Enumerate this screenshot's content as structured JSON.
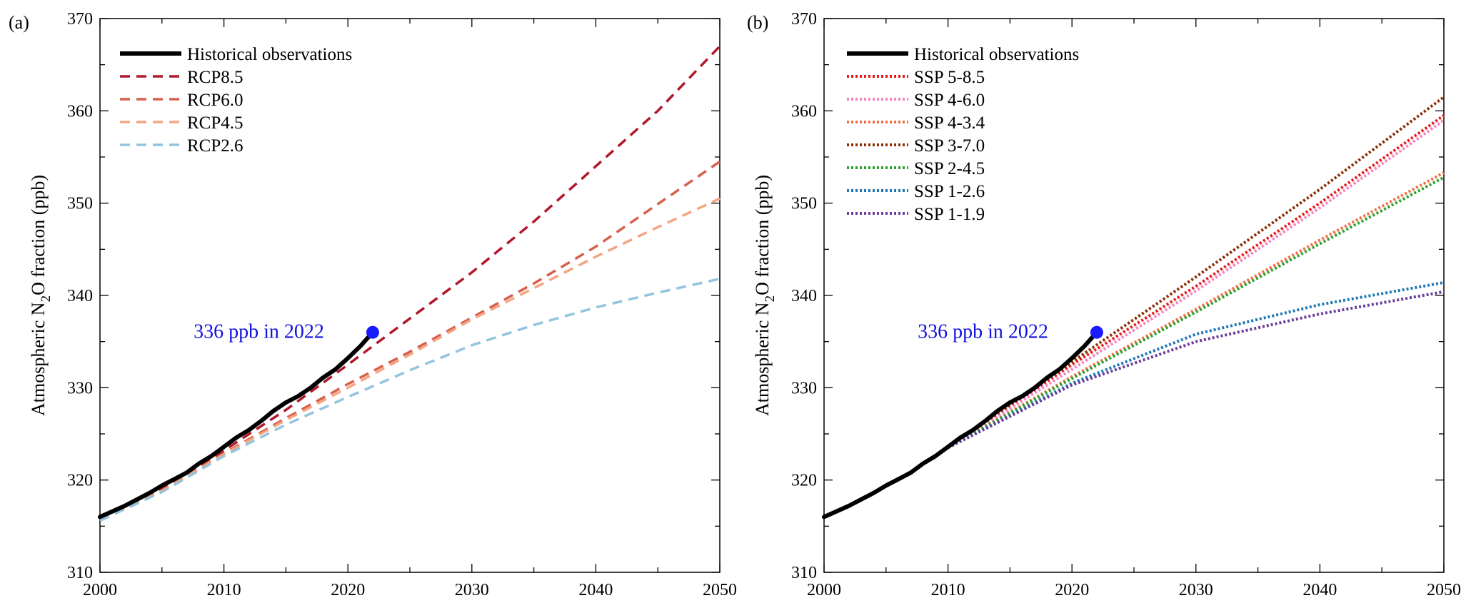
{
  "chart_data": [
    {
      "type": "line",
      "panel_label": "(a)",
      "xlim": [
        2000,
        2050
      ],
      "ylim": [
        310,
        370
      ],
      "xticks": [
        2000,
        2010,
        2020,
        2030,
        2040,
        2050
      ],
      "yticks": [
        310,
        320,
        330,
        340,
        350,
        360,
        370
      ],
      "ylabel": "Atmospheric N2O fraction (ppb)",
      "ylabel_parts": [
        "Atmospheric N",
        "2",
        "O fraction (ppb)"
      ],
      "xlabel": "",
      "grid": false,
      "legend_position": "top-left",
      "annotation": {
        "text": "336 ppb in 2022",
        "x": 2022,
        "y": 336,
        "color": "#1a1aff"
      },
      "series": [
        {
          "name": "Historical observations",
          "style": "solid",
          "color": "#000000",
          "x": [
            2000,
            2001,
            2002,
            2003,
            2004,
            2005,
            2006,
            2007,
            2008,
            2009,
            2010,
            2011,
            2012,
            2013,
            2014,
            2015,
            2016,
            2017,
            2018,
            2019,
            2020,
            2021,
            2022
          ],
          "y": [
            316.0,
            316.6,
            317.2,
            317.9,
            318.6,
            319.4,
            320.1,
            320.8,
            321.8,
            322.6,
            323.6,
            324.6,
            325.4,
            326.4,
            327.5,
            328.4,
            329.1,
            330.0,
            331.1,
            332.0,
            333.2,
            334.5,
            336.0
          ]
        },
        {
          "name": "RCP8.5",
          "style": "dash",
          "color": "#b2182b",
          "x": [
            2000,
            2005,
            2010,
            2015,
            2020,
            2025,
            2030,
            2035,
            2040,
            2045,
            2050
          ],
          "y": [
            315.8,
            319.0,
            323.2,
            327.6,
            332.5,
            337.5,
            342.5,
            348.0,
            354.0,
            360.0,
            367.0
          ]
        },
        {
          "name": "RCP6.0",
          "style": "dash",
          "color": "#d6604d",
          "x": [
            2000,
            2005,
            2010,
            2015,
            2020,
            2025,
            2030,
            2035,
            2040,
            2045,
            2050
          ],
          "y": [
            315.8,
            318.9,
            322.9,
            326.7,
            330.4,
            333.9,
            337.6,
            341.3,
            345.3,
            349.9,
            354.5
          ]
        },
        {
          "name": "RCP4.5",
          "style": "dash",
          "color": "#f4a582",
          "x": [
            2000,
            2005,
            2010,
            2015,
            2020,
            2025,
            2030,
            2035,
            2040,
            2045,
            2050
          ],
          "y": [
            315.8,
            318.8,
            322.8,
            326.5,
            330.0,
            333.6,
            337.4,
            340.8,
            344.2,
            347.4,
            350.5
          ]
        },
        {
          "name": "RCP2.6",
          "style": "dash",
          "color": "#92c5de",
          "x": [
            2000,
            2005,
            2010,
            2015,
            2020,
            2025,
            2030,
            2035,
            2040,
            2045,
            2050
          ],
          "y": [
            315.6,
            318.7,
            322.6,
            326.0,
            329.0,
            331.9,
            334.6,
            336.8,
            338.7,
            340.3,
            341.8
          ]
        }
      ]
    },
    {
      "type": "line",
      "panel_label": "(b)",
      "xlim": [
        2000,
        2050
      ],
      "ylim": [
        310,
        370
      ],
      "xticks": [
        2000,
        2010,
        2020,
        2030,
        2040,
        2050
      ],
      "yticks": [
        310,
        320,
        330,
        340,
        350,
        360,
        370
      ],
      "ylabel": "Atmospheric N2O fraction (ppb)",
      "ylabel_parts": [
        "Atmospheric N",
        "2",
        "O fraction (ppb)"
      ],
      "xlabel": "",
      "grid": false,
      "legend_position": "top-left",
      "annotation": {
        "text": "336 ppb in 2022",
        "x": 2022,
        "y": 336,
        "color": "#1a1aff"
      },
      "series": [
        {
          "name": "Historical observations",
          "style": "solid",
          "color": "#000000",
          "x": [
            2000,
            2001,
            2002,
            2003,
            2004,
            2005,
            2006,
            2007,
            2008,
            2009,
            2010,
            2011,
            2012,
            2013,
            2014,
            2015,
            2016,
            2017,
            2018,
            2019,
            2020,
            2021,
            2022
          ],
          "y": [
            316.0,
            316.6,
            317.2,
            317.9,
            318.6,
            319.4,
            320.1,
            320.8,
            321.8,
            322.6,
            323.6,
            324.6,
            325.4,
            326.4,
            327.5,
            328.4,
            329.1,
            330.0,
            331.1,
            332.0,
            333.2,
            334.5,
            336.0
          ]
        },
        {
          "name": "SSP 5-8.5",
          "style": "dot",
          "color": "#e41a1c",
          "x": [
            2010,
            2020,
            2030,
            2040,
            2050
          ],
          "y": [
            323.5,
            332.5,
            341.0,
            350.0,
            359.5
          ]
        },
        {
          "name": "SSP 4-6.0",
          "style": "dot",
          "color": "#f781bf",
          "x": [
            2010,
            2020,
            2030,
            2040,
            2050
          ],
          "y": [
            323.5,
            332.0,
            340.5,
            349.5,
            359.0
          ]
        },
        {
          "name": "SSP 4-3.4",
          "style": "dot",
          "color": "#f46d43",
          "x": [
            2010,
            2020,
            2030,
            2040,
            2050
          ],
          "y": [
            323.5,
            331.2,
            338.5,
            346.0,
            353.3
          ]
        },
        {
          "name": "SSP 3-7.0",
          "style": "dot",
          "color": "#8c2d04",
          "x": [
            2010,
            2020,
            2030,
            2040,
            2050
          ],
          "y": [
            323.5,
            332.8,
            342.0,
            351.5,
            361.5
          ]
        },
        {
          "name": "SSP 2-4.5",
          "style": "dot",
          "color": "#2ca02c",
          "x": [
            2010,
            2020,
            2030,
            2040,
            2050
          ],
          "y": [
            323.5,
            331.0,
            338.2,
            345.6,
            352.8
          ]
        },
        {
          "name": "SSP 1-2.6",
          "style": "dot",
          "color": "#1f78b4",
          "x": [
            2010,
            2020,
            2030,
            2040,
            2050
          ],
          "y": [
            323.5,
            330.5,
            335.8,
            339.0,
            341.4
          ]
        },
        {
          "name": "SSP 1-1.9",
          "style": "dot",
          "color": "#6a3d9a",
          "x": [
            2010,
            2020,
            2030,
            2040,
            2050
          ],
          "y": [
            323.5,
            330.3,
            335.0,
            338.0,
            340.4
          ]
        }
      ]
    }
  ]
}
